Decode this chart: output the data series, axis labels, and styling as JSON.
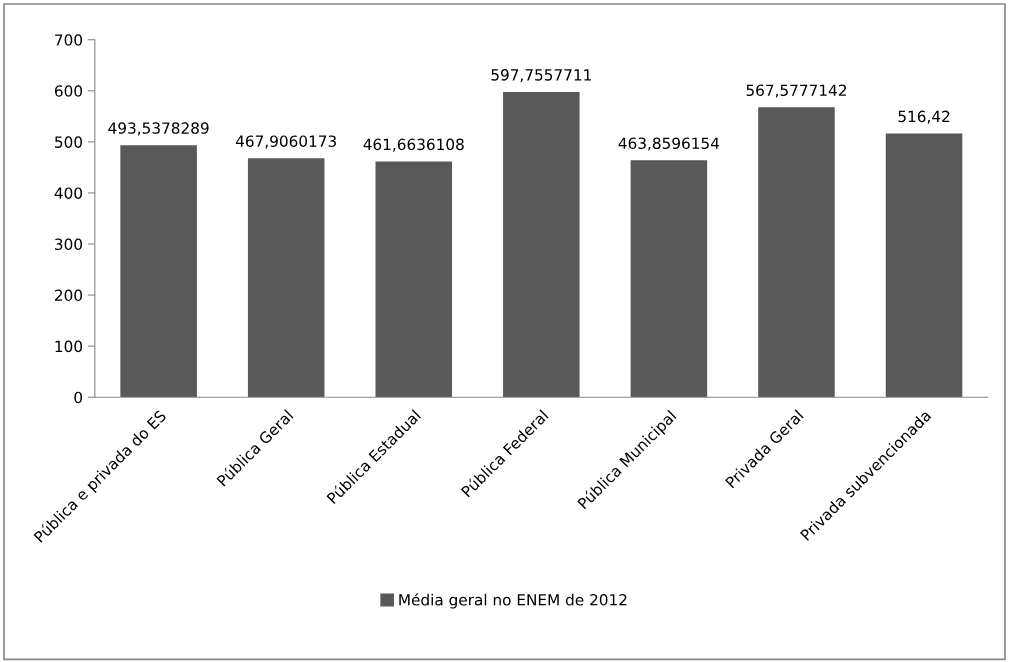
{
  "chart_data": {
    "type": "bar",
    "categories": [
      "Pública e privada do ES",
      "Pública Geral",
      "Pública Estadual",
      "Pública Federal",
      "Pública Municipal",
      "Privada Geral",
      "Privada subvencionada"
    ],
    "series": [
      {
        "name": "Média geral no ENEM de 2012",
        "color": "#595959",
        "values": [
          493.5378289,
          467.9060173,
          461.6636108,
          597.7557711,
          463.8596154,
          567.5777142,
          516.42
        ],
        "value_labels": [
          "493,5378289",
          "467,9060173",
          "461,6636108",
          "597,7557711",
          "463,8596154",
          "567,5777142",
          "516,42"
        ]
      }
    ],
    "ylim": [
      0,
      700
    ],
    "yticks": [
      0,
      100,
      200,
      300,
      400,
      500,
      600,
      700
    ],
    "grid": false,
    "legend": "bottom"
  }
}
